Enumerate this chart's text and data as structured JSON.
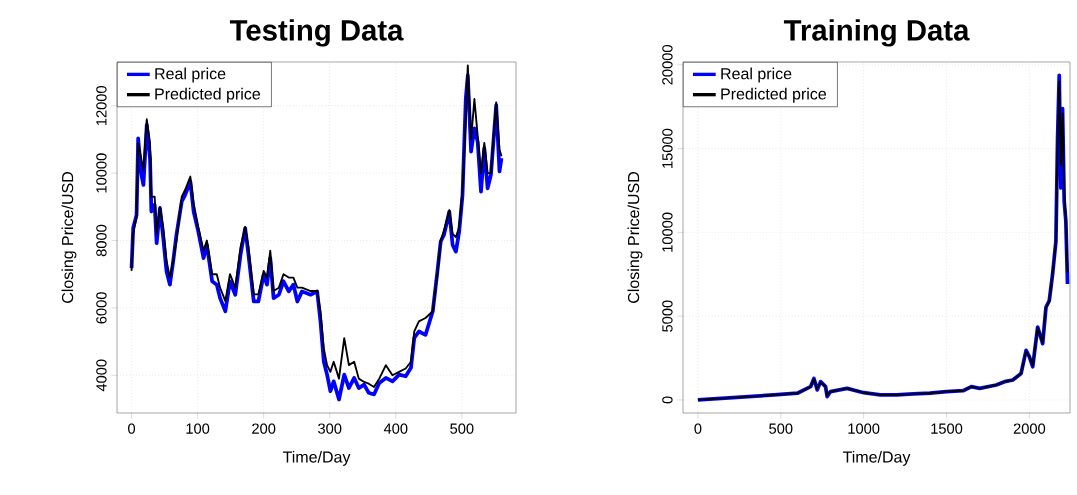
{
  "chart_data": [
    {
      "type": "line",
      "title": "Testing Data",
      "xlabel": "Time/Day",
      "ylabel": "Closing Price/USD",
      "x": [
        0,
        2.5,
        7.6,
        10,
        15,
        18,
        23,
        28,
        30,
        35,
        38,
        43,
        48,
        53,
        58,
        63,
        68,
        76,
        81,
        89,
        94,
        101,
        109,
        114,
        122,
        129,
        134,
        142,
        149,
        157,
        165,
        172,
        177,
        185,
        192,
        200,
        205,
        210,
        215,
        223,
        230,
        238,
        245,
        251,
        258,
        271,
        281,
        286,
        291,
        296,
        301,
        306,
        314,
        322,
        329,
        337,
        344,
        352,
        359,
        367,
        375,
        385,
        395,
        405,
        415,
        423,
        428,
        435,
        445,
        456,
        463,
        468,
        473,
        481,
        486,
        491,
        496,
        501,
        506,
        509,
        514,
        519,
        524,
        529,
        534,
        539,
        544,
        552,
        557,
        560
      ],
      "series": [
        {
          "name": "Real price",
          "color": "#0000ff",
          "values": [
            7180,
            8370,
            8760,
            11030,
            9950,
            9650,
            11430,
            10440,
            8860,
            9060,
            7920,
            8960,
            8070,
            7080,
            6690,
            7380,
            8170,
            9160,
            9350,
            9750,
            8860,
            8270,
            7480,
            7870,
            6790,
            6690,
            6290,
            5900,
            6790,
            6390,
            7580,
            8370,
            7580,
            6190,
            6190,
            6980,
            6690,
            7480,
            6290,
            6390,
            6790,
            6490,
            6690,
            6190,
            6490,
            6390,
            6490,
            5600,
            4410,
            4020,
            3530,
            3820,
            3280,
            4020,
            3620,
            3920,
            3620,
            3720,
            3480,
            3430,
            3770,
            3920,
            3820,
            4020,
            3970,
            4220,
            5110,
            5300,
            5200,
            5900,
            7080,
            7970,
            8170,
            8860,
            7870,
            7670,
            8270,
            9350,
            12220,
            12900,
            10640,
            11330,
            10930,
            9450,
            10740,
            9550,
            9950,
            12020,
            10050,
            10440
          ]
        },
        {
          "name": "Predicted price",
          "color": "#000000",
          "values": [
            7100,
            8200,
            8700,
            10900,
            10400,
            10100,
            11600,
            10900,
            9300,
            9300,
            8200,
            9000,
            8400,
            7400,
            6900,
            7400,
            8000,
            9300,
            9500,
            9900,
            9100,
            8400,
            7700,
            8000,
            7000,
            7000,
            6600,
            6200,
            7000,
            6600,
            7800,
            8400,
            7800,
            6400,
            6400,
            7100,
            6900,
            7700,
            6500,
            6600,
            7000,
            6900,
            6900,
            6600,
            6600,
            6500,
            6500,
            5900,
            4800,
            4300,
            4100,
            4400,
            3900,
            5100,
            4300,
            4400,
            3900,
            3800,
            3750,
            3650,
            3900,
            4300,
            4000,
            4100,
            4200,
            4400,
            5300,
            5600,
            5700,
            5900,
            7000,
            8000,
            8300,
            8900,
            8200,
            8100,
            8400,
            9500,
            11600,
            13200,
            11000,
            12200,
            11100,
            10000,
            10900,
            10000,
            10000,
            12100,
            10700,
            10500
          ]
        }
      ],
      "xlim": [
        -22,
        582
      ],
      "ylim": [
        2880,
        13300
      ],
      "xticks": [
        0,
        100,
        200,
        300,
        400,
        500
      ],
      "yticks": [
        4000,
        6000,
        8000,
        10000,
        12000
      ],
      "grid": true,
      "legend": "top left"
    },
    {
      "type": "line",
      "title": "Training Data",
      "xlabel": "Time/Day",
      "ylabel": "Closing Price/USD",
      "x": [
        0,
        460,
        600,
        680,
        700,
        720,
        740,
        770,
        780,
        800,
        900,
        1000,
        1100,
        1200,
        1300,
        1400,
        1500,
        1600,
        1650,
        1700,
        1800,
        1850,
        1900,
        1950,
        1980,
        2000,
        2020,
        2050,
        2080,
        2100,
        2120,
        2140,
        2160,
        2170,
        2180,
        2190,
        2200,
        2210,
        2220,
        2230
      ],
      "series": [
        {
          "name": "Real price",
          "color": "#0000ff",
          "values": [
            0,
            300,
            400,
            790,
            1280,
            600,
            1090,
            790,
            200,
            500,
            690,
            430,
            300,
            300,
            360,
            400,
            500,
            550,
            790,
            690,
            890,
            1090,
            1190,
            1580,
            2960,
            2570,
            1980,
            4350,
            3360,
            5530,
            5930,
            7510,
            9480,
            15610,
            19370,
            12650,
            17390,
            11860,
            10670,
            6920
          ]
        },
        {
          "name": "Predicted price",
          "color": "#000000",
          "values": [
            0,
            300,
            400,
            790,
            1250,
            650,
            1050,
            800,
            250,
            500,
            690,
            430,
            300,
            300,
            360,
            400,
            500,
            550,
            780,
            690,
            890,
            1090,
            1190,
            1580,
            2900,
            2600,
            2050,
            4300,
            3400,
            5500,
            5900,
            7500,
            9400,
            15200,
            19000,
            14000,
            17100,
            12500,
            10700,
            7600
          ]
        }
      ],
      "xlim": [
        -90,
        2245
      ],
      "ylim": [
        -780,
        20170
      ],
      "xticks": [
        0,
        500,
        1000,
        1500,
        2000
      ],
      "yticks": [
        0,
        5000,
        10000,
        15000,
        20000
      ],
      "grid": true,
      "legend": "top left"
    }
  ]
}
